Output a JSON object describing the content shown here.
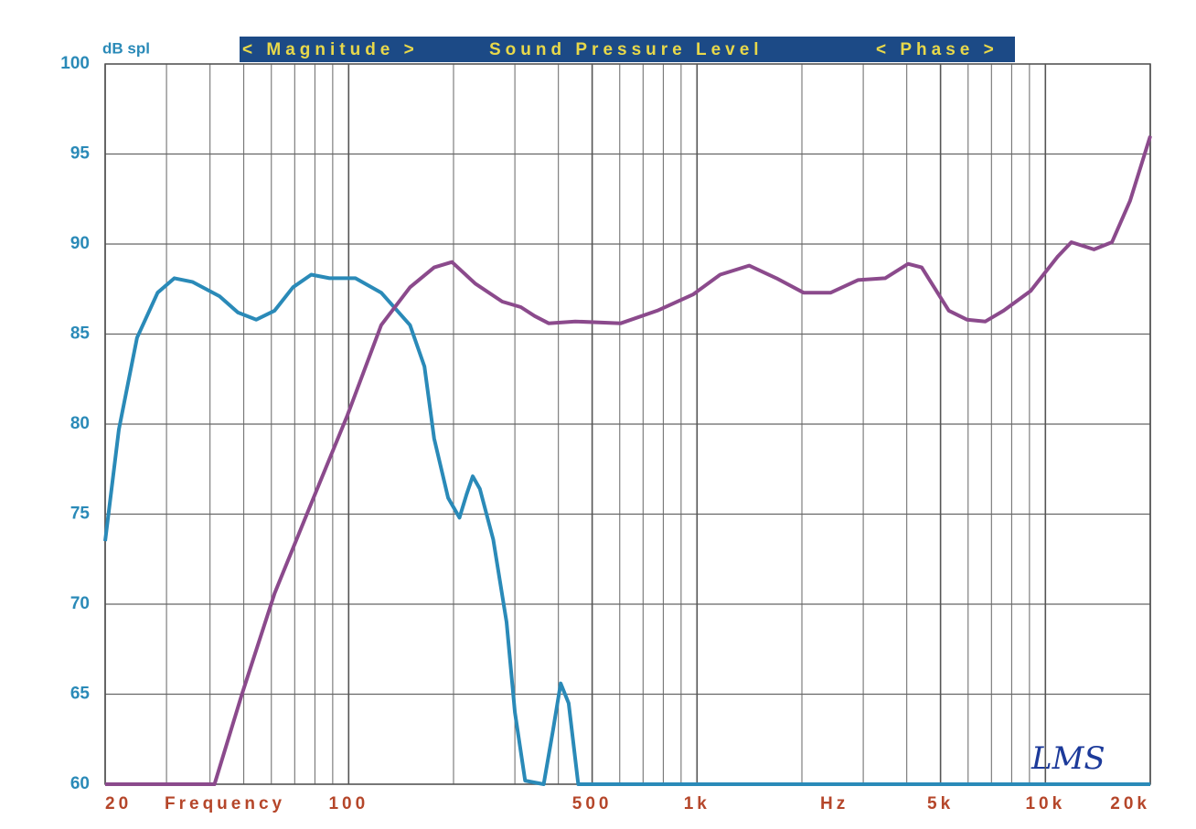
{
  "chart_data": {
    "type": "line",
    "ylabel": "dB spl",
    "banner": [
      "< Magnitude >",
      "Sound Pressure Level",
      "< Phase >"
    ],
    "xlabel": "Frequency",
    "xunit": "Hz",
    "logo": "LMS",
    "xscale": "log",
    "xlim": [
      20,
      20000
    ],
    "ylim": [
      60,
      100
    ],
    "yticks": [
      60,
      65,
      70,
      75,
      80,
      85,
      90,
      95,
      100
    ],
    "xticks": [
      20,
      100,
      500,
      {
        "value": 1000,
        "label": "1k"
      },
      {
        "value": 5000,
        "label": "5k"
      },
      {
        "value": 10000,
        "label": "10k"
      },
      {
        "value": 20000,
        "label": "20k"
      }
    ],
    "xgrid": [
      30,
      40,
      50,
      60,
      70,
      80,
      90,
      200,
      300,
      400,
      600,
      700,
      800,
      900,
      2000,
      3000,
      4000,
      6000,
      7000,
      8000,
      9000
    ],
    "grid": true,
    "series": [
      {
        "color": "#2a8ab8",
        "x": [
          20,
          21.9,
          24.7,
          28.3,
          31.6,
          35.6,
          42.6,
          48.1,
          54.3,
          61.3,
          69.2,
          78.1,
          88.1,
          104.6,
          124,
          150,
          165,
          176,
          193,
          208,
          218,
          227,
          238,
          260,
          284,
          300,
          321,
          363,
          386,
          406,
          428,
          456,
          535,
          20000
        ],
        "values": [
          73.5,
          79.7,
          84.8,
          87.3,
          88.1,
          87.9,
          87.1,
          86.2,
          85.8,
          86.3,
          87.6,
          88.3,
          88.1,
          88.1,
          87.3,
          85.5,
          83.2,
          79.2,
          75.9,
          74.8,
          76.1,
          77.1,
          76.4,
          73.6,
          69.0,
          64.0,
          60.2,
          60,
          63.0,
          65.6,
          64.5,
          60,
          60,
          60
        ]
      },
      {
        "color": "#8b4a8c",
        "x": [
          20,
          41.2,
          49.4,
          61.3,
          78.1,
          99.2,
          124,
          150,
          176,
          198,
          231,
          276,
          312,
          342,
          375,
          447,
          604,
          769,
          974,
          1165,
          1411,
          1690,
          2022,
          2420,
          2896,
          3467,
          4034,
          4415,
          5283,
          5955,
          6722,
          7588,
          9070,
          10840,
          11870,
          13780,
          15530,
          17500,
          20000
        ],
        "values": [
          60,
          60,
          65.0,
          70.6,
          75.6,
          80.5,
          85.5,
          87.6,
          88.7,
          89.0,
          87.8,
          86.8,
          86.5,
          86.0,
          85.6,
          85.7,
          85.6,
          86.3,
          87.2,
          88.3,
          88.8,
          88.1,
          87.3,
          87.3,
          88.0,
          88.1,
          88.9,
          88.7,
          86.3,
          85.8,
          85.7,
          86.3,
          87.4,
          89.3,
          90.1,
          89.7,
          90.1,
          92.4,
          96.0
        ]
      }
    ]
  }
}
